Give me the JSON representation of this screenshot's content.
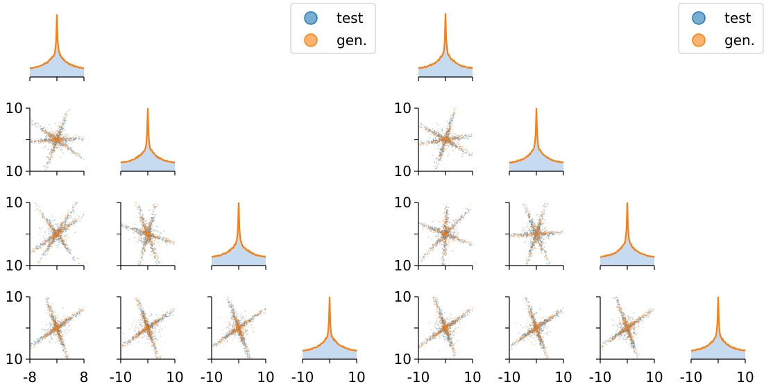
{
  "colors": {
    "test": "#1f77b4",
    "gen": "#ff7f0e",
    "hist_fill": "#c6dbef"
  },
  "chart_data": [
    {
      "type": "corner-pairplot",
      "legend": {
        "placement": "top-right",
        "entries": [
          {
            "label": "test",
            "color": "#1f77b4"
          },
          {
            "label": "gen.",
            "color": "#ff7f0e"
          }
        ]
      },
      "y_tick_labels": [
        "10",
        "10"
      ],
      "x_tick_labels": [
        [
          "-8",
          "8"
        ],
        [
          "-10",
          "10"
        ],
        [
          "-10",
          "10"
        ],
        [
          "-10",
          "10"
        ]
      ],
      "diagonal": {
        "type": "histogram",
        "series": [
          "test",
          "gen."
        ]
      },
      "offdiagonal": {
        "type": "scatter",
        "series": [
          "test",
          "gen."
        ],
        "rays": [
          [
            [
              2.5,
              0.05,
              1.2
            ],
            [
              1.0,
              1.75,
              0.7
            ]
          ],
          [
            [
              2.2,
              1.0,
              0.6
            ],
            [
              2.8,
              1.9,
              1.3
            ],
            [
              1.45,
              0.2,
              0.9
            ]
          ]
        ]
      }
    },
    {
      "type": "corner-pairplot",
      "legend": {
        "placement": "top-right",
        "entries": [
          {
            "label": "test",
            "color": "#1f77b4"
          },
          {
            "label": "gen.",
            "color": "#ff7f0e"
          }
        ]
      },
      "y_tick_labels": [
        "10",
        "10"
      ],
      "x_tick_labels": [
        [
          "-10",
          "10"
        ],
        [
          "-10",
          "10"
        ],
        [
          "-10",
          "10"
        ],
        [
          "-10",
          "10"
        ]
      ],
      "diagonal": {
        "type": "histogram",
        "series": [
          "test",
          "gen."
        ]
      },
      "offdiagonal": {
        "type": "scatter",
        "series": [
          "test",
          "gen."
        ],
        "rays": [
          [
            [
              2.6,
              1.25,
              0.15
            ],
            [
              0.45,
              2.8,
              1.6
            ]
          ],
          [
            [
              2.75,
              0.8,
              1.5
            ],
            [
              1.25,
              0.05,
              1.95
            ],
            [
              2.45,
              0.35,
              1.15
            ]
          ]
        ]
      }
    }
  ]
}
